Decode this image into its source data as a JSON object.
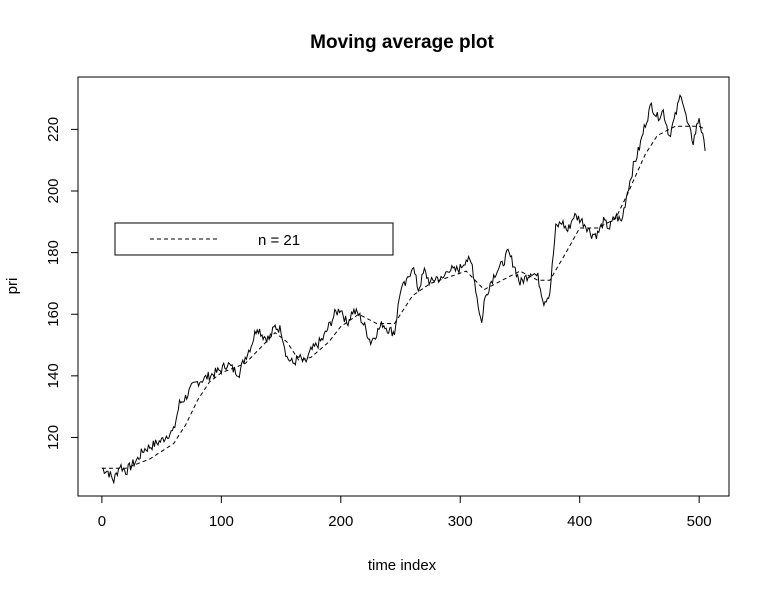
{
  "chart_data": {
    "type": "line",
    "title": "Moving average plot",
    "xlabel": "time index",
    "ylabel": "pri",
    "xlim": [
      -20,
      525
    ],
    "ylim": [
      101,
      237
    ],
    "x_ticks": [
      0,
      100,
      200,
      300,
      400,
      500
    ],
    "y_ticks": [
      120,
      140,
      160,
      180,
      200,
      220
    ],
    "legend": {
      "placement": "top-left",
      "entries": [
        {
          "line_style": "dashed",
          "label": "n =  21"
        }
      ]
    },
    "grid": false,
    "series": [
      {
        "line_style": "solid",
        "anchors": [
          [
            0,
            110
          ],
          [
            5,
            109
          ],
          [
            10,
            106
          ],
          [
            15,
            111
          ],
          [
            20,
            109
          ],
          [
            25,
            111
          ],
          [
            30,
            113
          ],
          [
            35,
            116
          ],
          [
            40,
            117
          ],
          [
            45,
            118
          ],
          [
            50,
            119
          ],
          [
            55,
            121
          ],
          [
            60,
            122
          ],
          [
            65,
            131
          ],
          [
            70,
            133
          ],
          [
            75,
            136
          ],
          [
            80,
            138
          ],
          [
            85,
            139
          ],
          [
            90,
            140
          ],
          [
            100,
            142
          ],
          [
            105,
            144
          ],
          [
            110,
            142
          ],
          [
            115,
            141
          ],
          [
            120,
            146
          ],
          [
            125,
            150
          ],
          [
            130,
            156
          ],
          [
            135,
            153
          ],
          [
            140,
            152
          ],
          [
            145,
            156
          ],
          [
            150,
            155
          ],
          [
            155,
            146
          ],
          [
            160,
            144
          ],
          [
            165,
            146
          ],
          [
            170,
            144
          ],
          [
            175,
            148
          ],
          [
            180,
            150
          ],
          [
            185,
            152
          ],
          [
            190,
            156
          ],
          [
            195,
            160
          ],
          [
            200,
            162
          ],
          [
            205,
            157
          ],
          [
            210,
            161
          ],
          [
            215,
            160
          ],
          [
            220,
            156
          ],
          [
            225,
            151
          ],
          [
            230,
            154
          ],
          [
            235,
            157
          ],
          [
            240,
            155
          ],
          [
            245,
            154
          ],
          [
            250,
            168
          ],
          [
            255,
            170
          ],
          [
            260,
            176
          ],
          [
            265,
            168
          ],
          [
            270,
            174
          ],
          [
            275,
            170
          ],
          [
            280,
            172
          ],
          [
            285,
            171
          ],
          [
            290,
            175
          ],
          [
            295,
            174
          ],
          [
            300,
            175
          ],
          [
            305,
            178
          ],
          [
            310,
            176
          ],
          [
            315,
            163
          ],
          [
            318,
            157
          ],
          [
            320,
            164
          ],
          [
            325,
            170
          ],
          [
            330,
            174
          ],
          [
            335,
            176
          ],
          [
            340,
            180
          ],
          [
            345,
            176
          ],
          [
            350,
            170
          ],
          [
            355,
            172
          ],
          [
            360,
            174
          ],
          [
            365,
            172
          ],
          [
            370,
            164
          ],
          [
            375,
            167
          ],
          [
            380,
            188
          ],
          [
            385,
            190
          ],
          [
            390,
            187
          ],
          [
            395,
            192
          ],
          [
            400,
            191
          ],
          [
            405,
            189
          ],
          [
            410,
            186
          ],
          [
            415,
            186
          ],
          [
            420,
            190
          ],
          [
            425,
            188
          ],
          [
            430,
            192
          ],
          [
            435,
            190
          ],
          [
            440,
            200
          ],
          [
            445,
            208
          ],
          [
            450,
            214
          ],
          [
            455,
            222
          ],
          [
            460,
            228
          ],
          [
            465,
            224
          ],
          [
            470,
            226
          ],
          [
            475,
            218
          ],
          [
            480,
            224
          ],
          [
            485,
            232
          ],
          [
            490,
            222
          ],
          [
            495,
            216
          ],
          [
            500,
            224
          ],
          [
            505,
            213
          ]
        ]
      },
      {
        "line_style": "dashed",
        "name": "n =  21",
        "anchors": [
          [
            0,
            110
          ],
          [
            20,
            110
          ],
          [
            40,
            113
          ],
          [
            60,
            118
          ],
          [
            70,
            124
          ],
          [
            80,
            132
          ],
          [
            90,
            138
          ],
          [
            100,
            141
          ],
          [
            120,
            144
          ],
          [
            130,
            148
          ],
          [
            145,
            154
          ],
          [
            155,
            151
          ],
          [
            165,
            145
          ],
          [
            175,
            146
          ],
          [
            190,
            151
          ],
          [
            200,
            156
          ],
          [
            215,
            160
          ],
          [
            230,
            157
          ],
          [
            245,
            157
          ],
          [
            260,
            166
          ],
          [
            275,
            170
          ],
          [
            290,
            172
          ],
          [
            305,
            174
          ],
          [
            320,
            168
          ],
          [
            335,
            171
          ],
          [
            350,
            174
          ],
          [
            365,
            171
          ],
          [
            375,
            171
          ],
          [
            390,
            181
          ],
          [
            400,
            188
          ],
          [
            415,
            188
          ],
          [
            430,
            191
          ],
          [
            440,
            199
          ],
          [
            455,
            212
          ],
          [
            465,
            218
          ],
          [
            480,
            221
          ],
          [
            500,
            221
          ],
          [
            505,
            220
          ]
        ]
      }
    ]
  }
}
